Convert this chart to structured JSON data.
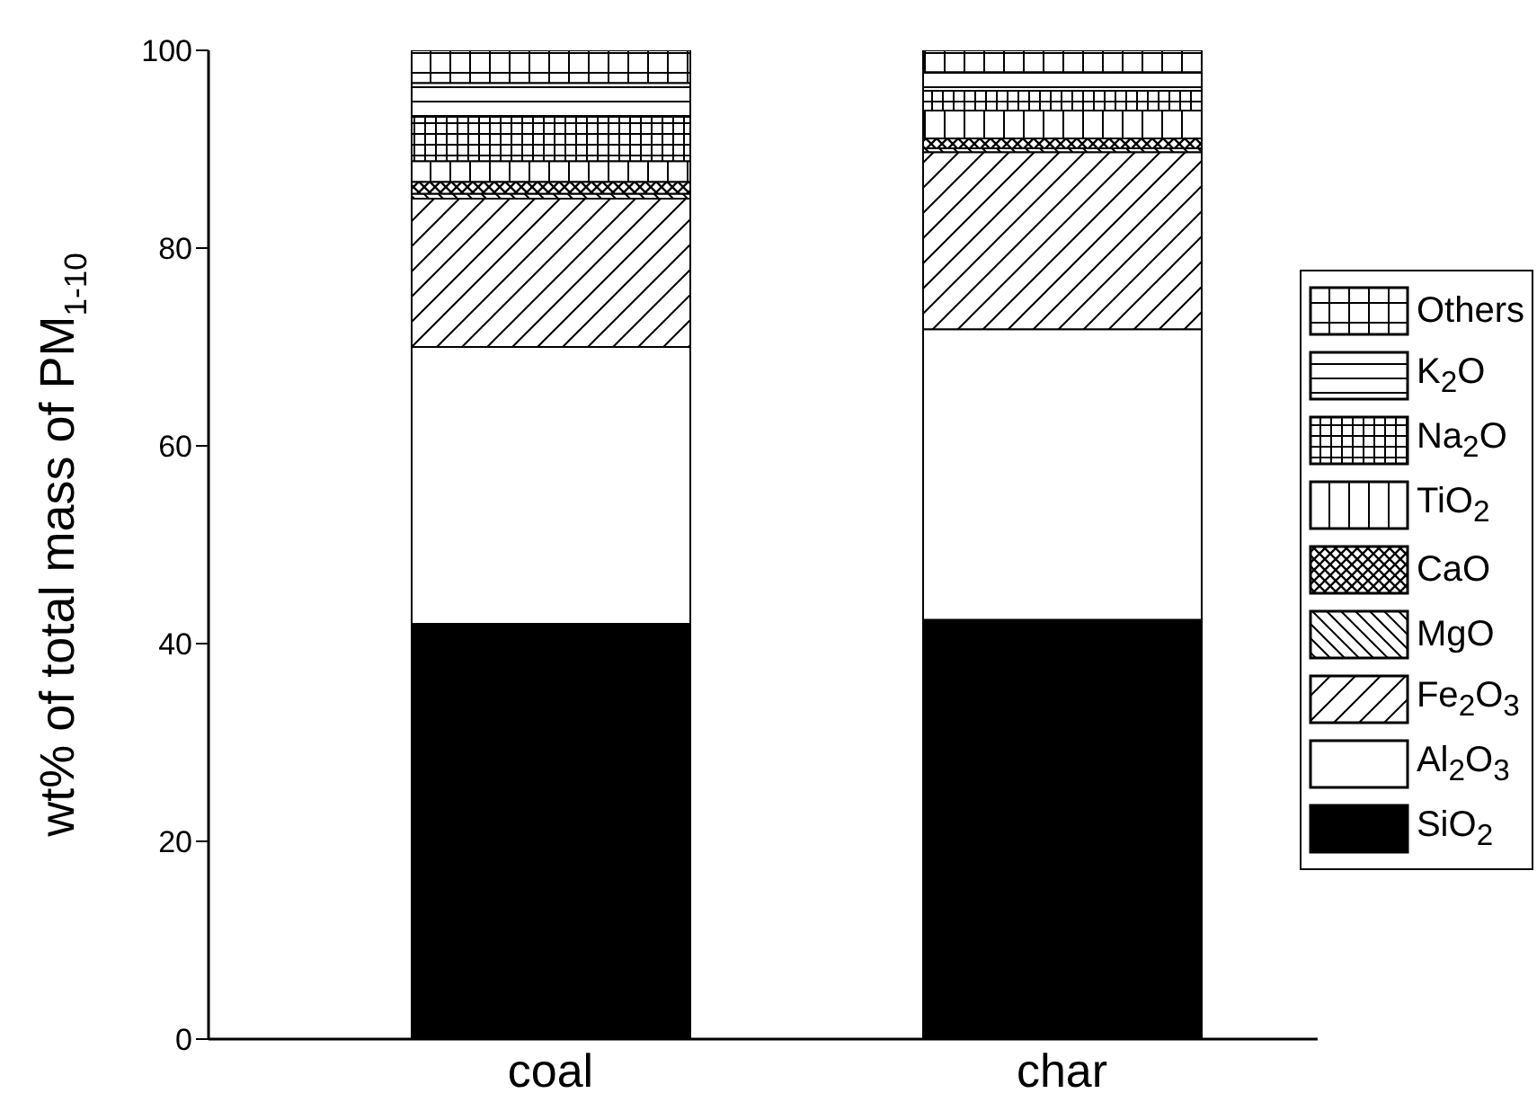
{
  "chart_data": {
    "type": "bar",
    "stacked": true,
    "ylabel": "wt% of total mass of PM$_{1-10}$",
    "categories": [
      "coal",
      "char"
    ],
    "ylim": [
      0,
      100
    ],
    "yticks": [
      0,
      20,
      40,
      60,
      80,
      100
    ],
    "legend": "right",
    "grid": false,
    "series": [
      {
        "name": "SiO$_{2}$",
        "color": "#000000",
        "values": [
          42,
          42.4
        ]
      },
      {
        "name": "Al$_{2}$O$_{3}$",
        "color": "#ffffff",
        "values": [
          28,
          29.4
        ]
      },
      {
        "name": "Fe$_{2}$O$_{3}$",
        "color": "#000000",
        "values": [
          15,
          17.9
        ]
      },
      {
        "name": "MgO",
        "color": "#000000",
        "values": [
          0.5,
          0.4
        ]
      },
      {
        "name": "CaO",
        "color": "#000000",
        "values": [
          1.2,
          1.0
        ]
      },
      {
        "name": "TiO$_{2}$",
        "color": "#000000",
        "values": [
          2.1,
          2.8
        ]
      },
      {
        "name": "Na$_{2}$O",
        "color": "#000000",
        "values": [
          4.5,
          2.0
        ]
      },
      {
        "name": "K$_{2}$O",
        "color": "#000000",
        "values": [
          3.4,
          1.9
        ]
      },
      {
        "name": "Others",
        "color": "#000000",
        "values": [
          3.3,
          2.3
        ]
      }
    ]
  }
}
